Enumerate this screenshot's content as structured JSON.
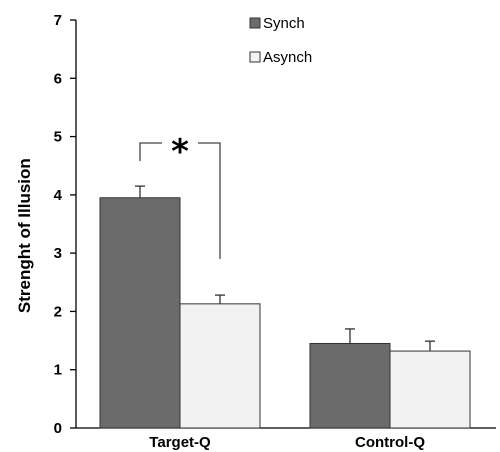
{
  "chart_data": {
    "type": "bar",
    "title": "",
    "xlabel": "",
    "ylabel": "Strenght of Illusion",
    "ylim": [
      0,
      7
    ],
    "yticks": [
      0,
      1,
      2,
      3,
      4,
      5,
      6,
      7
    ],
    "grid": false,
    "legend_position": "top-center",
    "categories": [
      "Target-Q",
      "Control-Q"
    ],
    "series": [
      {
        "name": "Synch",
        "color": "#6b6b6b",
        "values": [
          3.95,
          1.45
        ],
        "errors": [
          0.2,
          0.25
        ]
      },
      {
        "name": "Asynch",
        "color": "#f2f2f2",
        "values": [
          2.13,
          1.32
        ],
        "errors": [
          0.15,
          0.17
        ]
      }
    ],
    "annotations": [
      {
        "text": "*",
        "between": [
          "Target-Q/Synch",
          "Target-Q/Asynch"
        ]
      }
    ]
  }
}
